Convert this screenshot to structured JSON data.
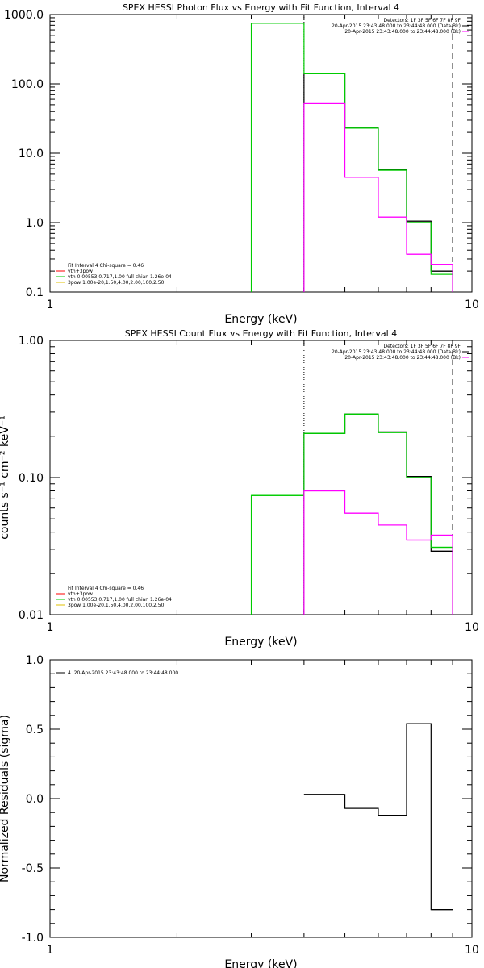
{
  "chart_data": [
    {
      "type": "line",
      "title": "SPEX HESSI Photon Flux vs Energy with Fit Function, Interval 4",
      "xlabel": "Energy (keV)",
      "ylabel": "",
      "xscale": "log",
      "yscale": "log",
      "xlim": [
        1,
        10
      ],
      "ylim": [
        0.1,
        1000
      ],
      "x_ticks": [
        {
          "value": 1,
          "label": "1"
        },
        {
          "value": 10,
          "label": "10"
        }
      ],
      "y_ticks": [
        {
          "value": 0.1,
          "label": "0.1"
        },
        {
          "value": 1,
          "label": "1.0"
        },
        {
          "value": 10,
          "label": "10.0"
        },
        {
          "value": 100,
          "label": "100.0"
        },
        {
          "value": 1000,
          "label": "1000.0"
        }
      ],
      "vlines": [
        {
          "x": 4,
          "style": "dotted",
          "color": "#000000"
        },
        {
          "x": 9,
          "style": "dashed",
          "color": "#000000"
        }
      ],
      "bin_edges": [
        3,
        4,
        5,
        6,
        7,
        8,
        9
      ],
      "series": [
        {
          "color": "#000000",
          "values": [
            null,
            140,
            23,
            5.8,
            1.05,
            0.2
          ]
        },
        {
          "color": "#00cc00",
          "values": [
            750,
            140,
            23,
            5.7,
            1.0,
            0.18
          ]
        },
        {
          "color": "#ff00ff",
          "values": [
            null,
            52,
            4.5,
            1.2,
            0.35,
            0.25
          ]
        }
      ],
      "legend_topright": {
        "lines": [
          {
            "text": "Detectors: 1F 3F 5F 6F 7F 8F 9F",
            "color": ""
          },
          {
            "text": "20-Apr-2015 23:43:48.000 to 23:44:48.000 (Data-Bk)",
            "color": "#000000"
          },
          {
            "text": "20-Apr-2015 23:43:48.000 to 23:44:48.000 (Bk)",
            "color": "#ff00ff"
          }
        ]
      },
      "legend_bottomleft": {
        "lines": [
          {
            "text": "Fit Interval 4   Chi-square = 0.46",
            "color": ""
          },
          {
            "text": "vth+3pow",
            "color": "#ff0000"
          },
          {
            "text": "vth 0.00553,0.717,1.00  full chian 1.26e-04",
            "color": "#00cc00"
          },
          {
            "text": "3pow 1.00e-20,1.50,4.00,2.00,100,2.50",
            "color": "#e0c000"
          }
        ]
      }
    },
    {
      "type": "line",
      "title": "SPEX HESSI Count Flux vs Energy with Fit Function, Interval 4",
      "xlabel": "Energy (keV)",
      "ylabel": "counts s⁻¹ cm⁻² keV⁻¹",
      "xscale": "log",
      "yscale": "log",
      "xlim": [
        1,
        10
      ],
      "ylim": [
        0.01,
        1
      ],
      "x_ticks": [
        {
          "value": 1,
          "label": "1"
        },
        {
          "value": 10,
          "label": "10"
        }
      ],
      "y_ticks": [
        {
          "value": 0.01,
          "label": "0.01"
        },
        {
          "value": 0.1,
          "label": "0.10"
        },
        {
          "value": 1,
          "label": "1.00"
        }
      ],
      "vlines": [
        {
          "x": 4,
          "style": "dotted",
          "color": "#000000"
        },
        {
          "x": 9,
          "style": "dashed",
          "color": "#000000"
        }
      ],
      "bin_edges": [
        3,
        4,
        5,
        6,
        7,
        8,
        9
      ],
      "series": [
        {
          "color": "#000000",
          "values": [
            null,
            0.21,
            0.29,
            0.215,
            0.102,
            0.029
          ]
        },
        {
          "color": "#00cc00",
          "values": [
            0.074,
            0.21,
            0.29,
            0.213,
            0.1,
            0.031
          ]
        },
        {
          "color": "#ff00ff",
          "values": [
            null,
            0.08,
            0.055,
            0.045,
            0.035,
            0.038
          ]
        }
      ],
      "legend_topright": {
        "lines": [
          {
            "text": "Detectors: 1F 3F 5F 6F 7F 8F 9F",
            "color": ""
          },
          {
            "text": "20-Apr-2015 23:43:48.000 to 23:44:48.000 (Data-Bk)",
            "color": "#000000"
          },
          {
            "text": "20-Apr-2015 23:43:48.000 to 23:44:48.000 (Bk)",
            "color": "#ff00ff"
          }
        ]
      },
      "legend_bottomleft": {
        "lines": [
          {
            "text": "Fit Interval 4   Chi-square = 0.46",
            "color": ""
          },
          {
            "text": "vth+3pow",
            "color": "#ff0000"
          },
          {
            "text": "vth 0.00553,0.717,1.00  full chian 1.26e-04",
            "color": "#00cc00"
          },
          {
            "text": "3pow 1.00e-20,1.50,4.00,2.00,100,2.50",
            "color": "#e0c000"
          }
        ]
      }
    },
    {
      "type": "line",
      "title": "",
      "xlabel": "Energy (keV)",
      "ylabel": "Normalized Residuals (sigma)",
      "xscale": "log",
      "yscale": "linear",
      "xlim": [
        1,
        10
      ],
      "ylim": [
        -1.0,
        1.0
      ],
      "x_ticks": [
        {
          "value": 1,
          "label": "1"
        },
        {
          "value": 10,
          "label": "10"
        }
      ],
      "y_ticks": [
        {
          "value": -1.0,
          "label": "-1.0"
        },
        {
          "value": -0.5,
          "label": "-0.5"
        },
        {
          "value": 0.0,
          "label": "0.0"
        },
        {
          "value": 0.5,
          "label": "0.5"
        },
        {
          "value": 1.0,
          "label": "1.0"
        }
      ],
      "vlines": [],
      "bin_edges": [
        4,
        5,
        6,
        7,
        8,
        9
      ],
      "series": [
        {
          "color": "#000000",
          "values": [
            0.03,
            -0.07,
            -0.12,
            0.54,
            -0.8
          ]
        }
      ],
      "legend_topleft": {
        "lines": [
          {
            "text": "4. 20-Apr-2015 23:43:48.000 to 23:44:48.000",
            "color": "#000000"
          }
        ]
      }
    }
  ]
}
